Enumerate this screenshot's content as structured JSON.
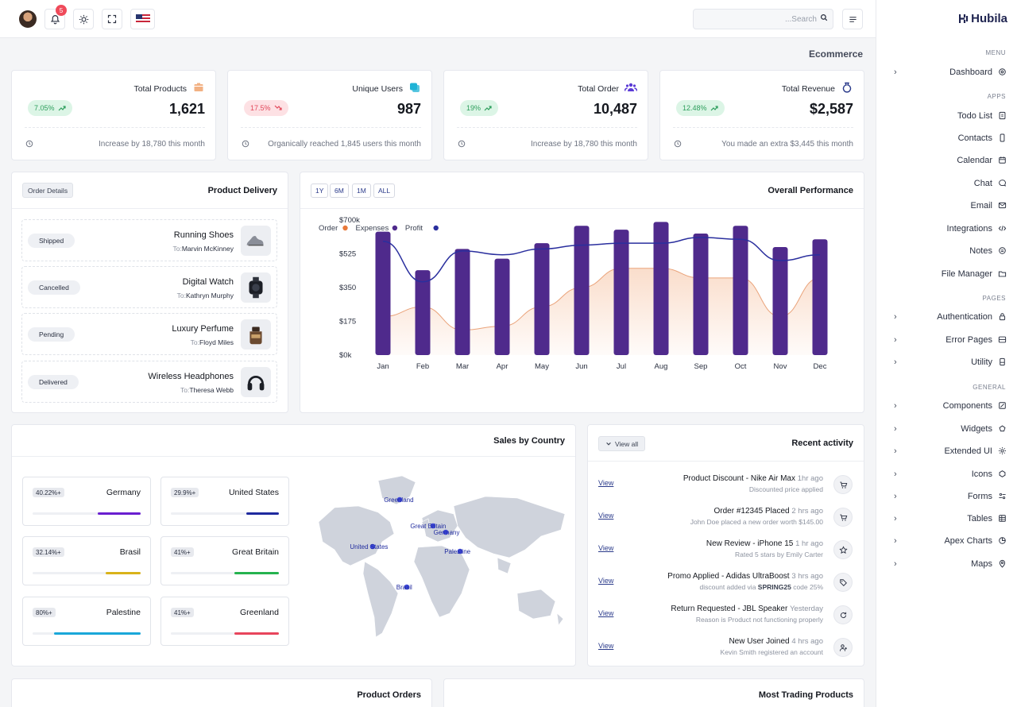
{
  "header": {
    "notification_count": "5",
    "search_placeholder": "...Search",
    "page_title": "Ecommerce"
  },
  "brand": {
    "name": "Hubila"
  },
  "sidebar": {
    "sections": {
      "menu": "MENU",
      "apps": "APPS",
      "pages": "PAGES",
      "general": "GENERAL"
    },
    "items": [
      {
        "label": "Dashboard",
        "icon": "dashboard-icon",
        "chevron": true
      },
      {
        "label": "Todo List",
        "icon": "todo-icon",
        "chevron": false
      },
      {
        "label": "Contacts",
        "icon": "phone-icon",
        "chevron": false
      },
      {
        "label": "Calendar",
        "icon": "calendar-icon",
        "chevron": false
      },
      {
        "label": "Chat",
        "icon": "chat-icon",
        "chevron": false
      },
      {
        "label": "Email",
        "icon": "mail-icon",
        "chevron": false
      },
      {
        "label": "Integrations",
        "icon": "code-icon",
        "chevron": false
      },
      {
        "label": "Notes",
        "icon": "notes-icon",
        "chevron": false
      },
      {
        "label": "File Manager",
        "icon": "folder-icon",
        "chevron": false
      },
      {
        "label": "Authentication",
        "icon": "lock-icon",
        "chevron": true
      },
      {
        "label": "Error Pages",
        "icon": "error-icon",
        "chevron": true
      },
      {
        "label": "Utility",
        "icon": "utility-icon",
        "chevron": true
      },
      {
        "label": "Components",
        "icon": "components-icon",
        "chevron": true
      },
      {
        "label": "Widgets",
        "icon": "widgets-icon",
        "chevron": true
      },
      {
        "label": "Extended UI",
        "icon": "gear-icon",
        "chevron": true
      },
      {
        "label": "Icons",
        "icon": "icons-icon",
        "chevron": true
      },
      {
        "label": "Forms",
        "icon": "forms-icon",
        "chevron": true
      },
      {
        "label": "Tables",
        "icon": "table-icon",
        "chevron": true
      },
      {
        "label": "Apex Charts",
        "icon": "chart-icon",
        "chevron": true
      },
      {
        "label": "Maps",
        "icon": "map-pin-icon",
        "chevron": true
      }
    ]
  },
  "stats": [
    {
      "title": "Total Products",
      "value": "1,621",
      "change": "7.05%",
      "trend": "up",
      "footer": "Increase by 18,780 this month",
      "icon": "box-icon",
      "icon_color": "#f2b183"
    },
    {
      "title": "Unique Users",
      "value": "987",
      "change": "17.5%",
      "trend": "down",
      "footer": "Organically reached 1,845 users this month",
      "icon": "users-icon",
      "icon_color": "#20b3d6"
    },
    {
      "title": "Total Order",
      "value": "10,487",
      "change": "19%",
      "trend": "up",
      "footer": "Increase by 18,780 this month",
      "icon": "group-icon",
      "icon_color": "#5b3bd6"
    },
    {
      "title": "Total Revenue",
      "value": "$2,587",
      "change": "12.48%",
      "trend": "up",
      "footer": "You made an extra $3,445 this month",
      "icon": "money-bag-icon",
      "icon_color": "#2a3a8a"
    }
  ],
  "delivery": {
    "title": "Product Delivery",
    "button": "Order Details",
    "to_prefix": "To:",
    "items": [
      {
        "status": "Shipped",
        "name": "Running Shoes",
        "to": "Marvin McKinney"
      },
      {
        "status": "Cancelled",
        "name": "Digital Watch",
        "to": "Kathryn Murphy"
      },
      {
        "status": "Pending",
        "name": "Luxury Perfume",
        "to": "Floyd Miles"
      },
      {
        "status": "Delivered",
        "name": "Wireless Headphones",
        "to": "Theresa Webb"
      }
    ]
  },
  "performance": {
    "ranges": [
      "1Y",
      "6M",
      "1M",
      "ALL"
    ]
  },
  "chart_data": {
    "type": "bar",
    "title": "Overall Performance",
    "categories": [
      "Jan",
      "Feb",
      "Mar",
      "Apr",
      "May",
      "Jun",
      "Jul",
      "Aug",
      "Sep",
      "Oct",
      "Nov",
      "Dec"
    ],
    "y_ticks": [
      "$0k",
      "$175",
      "$350",
      "$525",
      "$700k"
    ],
    "ylim": [
      0,
      700
    ],
    "legend": [
      "Order",
      "Expenses",
      "Profit"
    ],
    "colors": {
      "Order": "#e8793a",
      "Expenses": "#4f2a8c",
      "Profit": "#2a2f9e"
    },
    "series": [
      {
        "name": "Expenses",
        "type": "bar",
        "values": [
          640,
          440,
          550,
          500,
          580,
          670,
          650,
          690,
          630,
          670,
          560,
          600
        ]
      },
      {
        "name": "Order",
        "type": "area",
        "values": [
          200,
          250,
          130,
          150,
          250,
          350,
          450,
          450,
          400,
          400,
          200,
          400
        ]
      },
      {
        "name": "Profit",
        "type": "line",
        "values": [
          590,
          380,
          540,
          520,
          550,
          570,
          580,
          580,
          610,
          600,
          490,
          520
        ]
      }
    ]
  },
  "sales": {
    "title": "Sales by Country",
    "countries": [
      {
        "name": "Germany",
        "pct": "40.22%+",
        "value": 0.4,
        "color": "#6a1fd0"
      },
      {
        "name": "United States",
        "pct": "29.9%+",
        "value": 0.3,
        "color": "#1f2a9e"
      },
      {
        "name": "Brasil",
        "pct": "32.14%+",
        "value": 0.32,
        "color": "#d9b21a"
      },
      {
        "name": "Great Britain",
        "pct": "41%+",
        "value": 0.41,
        "color": "#25b24f"
      },
      {
        "name": "Palestine",
        "pct": "80%+",
        "value": 0.8,
        "color": "#1aa7d9"
      },
      {
        "name": "Greenland",
        "pct": "41%+",
        "value": 0.41,
        "color": "#e8455c"
      }
    ],
    "map_labels": [
      "Greenland",
      "Great Britain",
      "Germany",
      "United States",
      "Palestine",
      "Brasil"
    ]
  },
  "activity": {
    "title": "Recent activity",
    "view_all": "View all",
    "view_label": "View",
    "items": [
      {
        "title": "Product Discount - Nike Air Max",
        "time": "1hr ago",
        "sub": "Discounted price applied",
        "icon": "cart-icon"
      },
      {
        "title": "Order #12345 Placed",
        "time": "2 hrs ago",
        "sub": "John Doe placed a new order worth $145.00",
        "icon": "cart-icon"
      },
      {
        "title": "New Review - iPhone 15",
        "time": "1 hr ago",
        "sub": "Rated 5 stars by Emily Carter",
        "icon": "star-icon"
      },
      {
        "title": "Promo Applied - Adidas UltraBoost",
        "time": "3 hrs ago",
        "sub_pre": "discount added via ",
        "sub_code": "SPRING25",
        "sub_post": " code 25%",
        "icon": "tag-icon"
      },
      {
        "title": "Return Requested - JBL Speaker",
        "time": "Yesterday",
        "sub": "Reason is Product not functioning properly",
        "icon": "return-icon"
      },
      {
        "title": "New User Joined",
        "time": "4 hrs ago",
        "sub": "Kevin Smith registered an account",
        "icon": "add-user-icon"
      }
    ]
  },
  "bottom": {
    "product_orders": "Product Orders",
    "trading": "Most Trading Products"
  }
}
